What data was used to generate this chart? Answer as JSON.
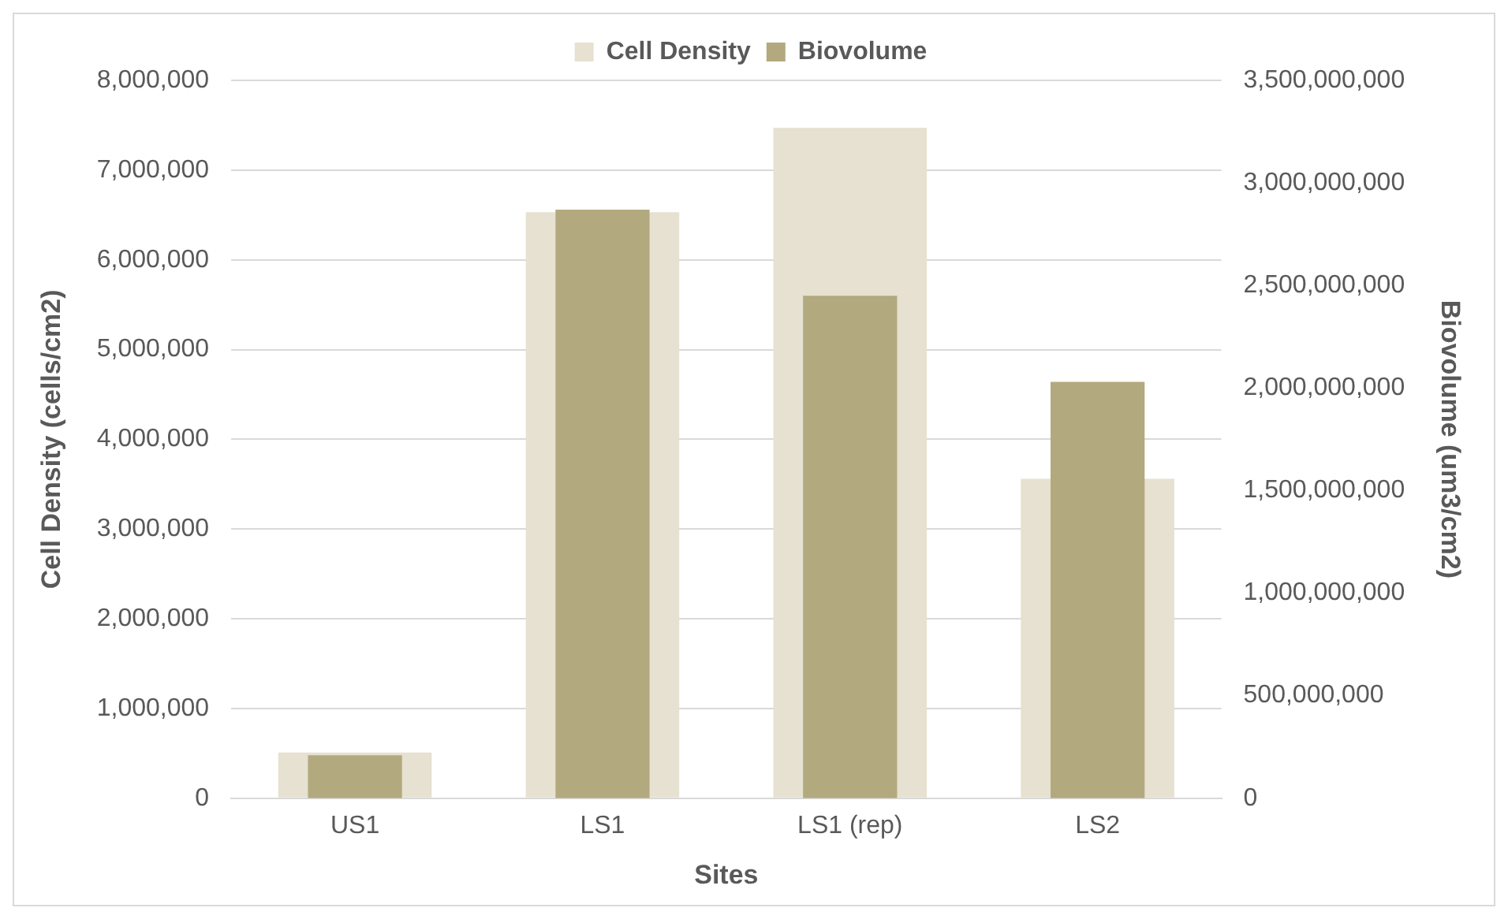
{
  "chart_data": {
    "type": "bar",
    "xlabel": "Sites",
    "ylabel": "Cell Density (cells/cm2)",
    "y2label": "Biovolume (um3/cm2)",
    "categories": [
      "US1",
      "LS1",
      "LS1 (rep)",
      "LS2"
    ],
    "series": [
      {
        "name": "Cell Density",
        "color": "#e6e1d0",
        "values": [
          510000,
          6530000,
          7470000,
          3560000
        ]
      },
      {
        "name": "Biovolume",
        "color": "#b3a97f",
        "axis": "y2",
        "values": [
          210000000,
          2870000000,
          2450000000,
          2030000000
        ]
      }
    ],
    "ylim": [
      0,
      8000000
    ],
    "yticks": [
      {
        "value": 0,
        "label": "0"
      },
      {
        "value": 1000000,
        "label": "1,000,000"
      },
      {
        "value": 2000000,
        "label": "2,000,000"
      },
      {
        "value": 3000000,
        "label": "3,000,000"
      },
      {
        "value": 4000000,
        "label": "4,000,000"
      },
      {
        "value": 5000000,
        "label": "5,000,000"
      },
      {
        "value": 6000000,
        "label": "6,000,000"
      },
      {
        "value": 7000000,
        "label": "7,000,000"
      },
      {
        "value": 8000000,
        "label": "8,000,000"
      }
    ],
    "y2lim": [
      0,
      3500000000
    ],
    "y2ticks": [
      {
        "value": 0,
        "label": "0"
      },
      {
        "value": 500000000,
        "label": "500,000,000"
      },
      {
        "value": 1000000000,
        "label": "1,000,000,000"
      },
      {
        "value": 1500000000,
        "label": "1,500,000,000"
      },
      {
        "value": 2000000000,
        "label": "2,000,000,000"
      },
      {
        "value": 2500000000,
        "label": "2,500,000,000"
      },
      {
        "value": 3000000000,
        "label": "3,000,000,000"
      },
      {
        "value": 3500000000,
        "label": "3,500,000,000"
      }
    ],
    "grid": "y",
    "legend": "top"
  }
}
